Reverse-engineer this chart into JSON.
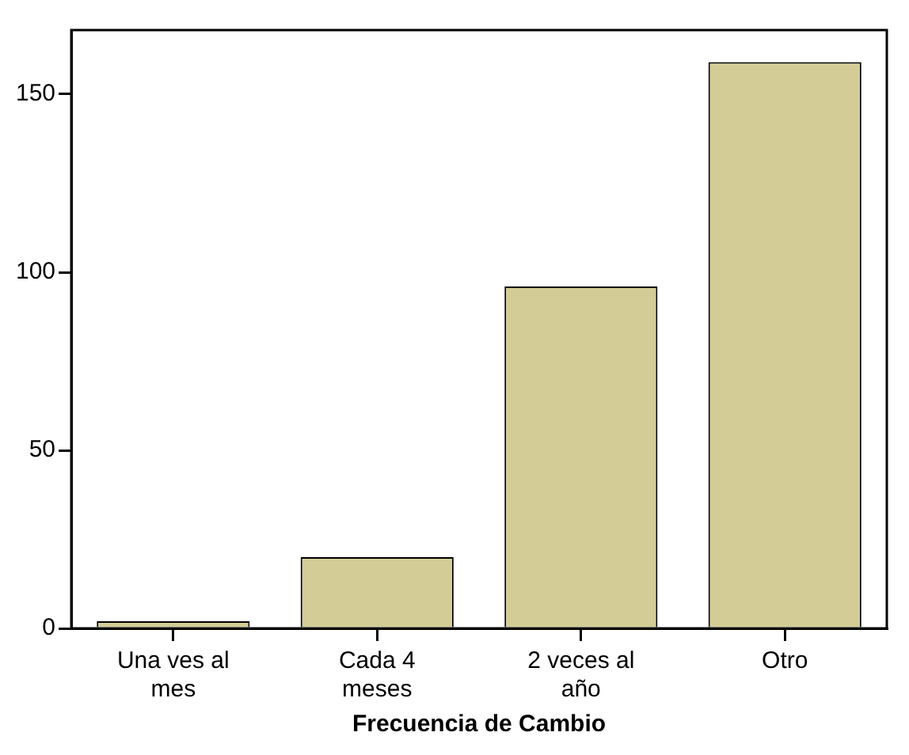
{
  "chart_data": {
    "type": "bar",
    "xlabel": "Frecuencia de Cambio",
    "categories": [
      "Una ves al mes",
      "Cada 4 meses",
      "2 veces al año",
      "Otro"
    ],
    "values": [
      2,
      20,
      96,
      159
    ],
    "color": "#d3cc96",
    "ylim": [
      0,
      168
    ],
    "yticks": [
      0,
      50,
      100,
      150
    ],
    "grid": false,
    "legend": false
  }
}
